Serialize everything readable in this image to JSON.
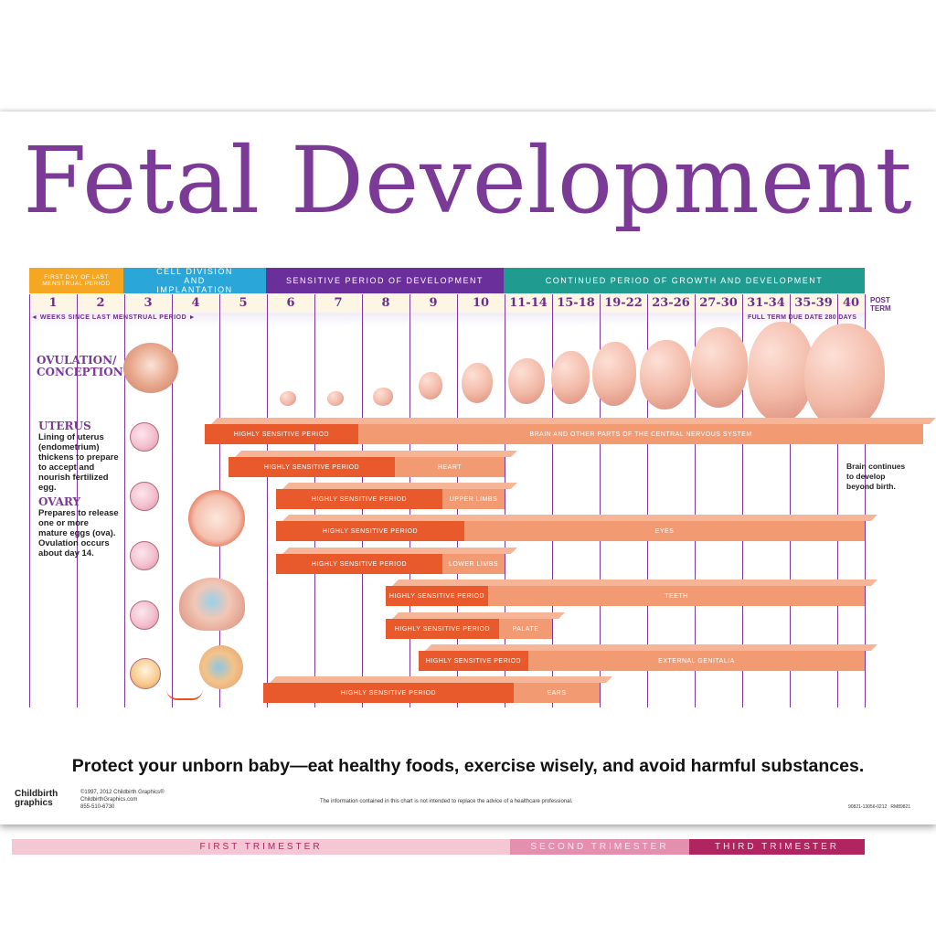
{
  "title": "Fetal Development",
  "header_bands": [
    {
      "text": "FIRST DAY OF LAST MENSTRUAL PERIOD",
      "color": "#f5a623"
    },
    {
      "text": "CELL DIVISION AND IMPLANTATION",
      "color": "#2aa7d8"
    },
    {
      "text": "SENSITIVE PERIOD OF DEVELOPMENT",
      "color": "#6a2f9b"
    },
    {
      "text": "CONTINUED PERIOD OF GROWTH AND DEVELOPMENT",
      "color": "#1f9b8f"
    }
  ],
  "weeks": [
    "1",
    "2",
    "3",
    "4",
    "5",
    "6",
    "7",
    "8",
    "9",
    "10",
    "11-14",
    "15-18",
    "19-22",
    "23-26",
    "27-30",
    "31-34",
    "35-39",
    "40"
  ],
  "post_term": "POST TERM",
  "weeks_note": "WEEKS SINCE LAST MENSTRUAL PERIOD",
  "full_term_note": "FULL TERM DUE DATE 280 DAYS",
  "side": {
    "ovulation": "OVULATION/ CONCEPTION",
    "uterus_head": "UTERUS",
    "uterus_text": "Lining of uterus (endometrium) thickens to prepare to accept and nourish fertilized egg.",
    "ovary_head": "OVARY",
    "ovary_text": "Prepares to release one or more mature eggs (ova). Ovulation occurs about day 14."
  },
  "brain_note": "Brain continues to develop beyond birth.",
  "bars": [
    {
      "sensitive": "HIGHLY SENSITIVE PERIOD",
      "organ": "BRAIN AND OTHER PARTS OF THE CENTRAL NERVOUS SYSTEM"
    },
    {
      "sensitive": "HIGHLY SENSITIVE PERIOD",
      "organ": "HEART"
    },
    {
      "sensitive": "HIGHLY SENSITIVE PERIOD",
      "organ": "UPPER LIMBS"
    },
    {
      "sensitive": "HIGHLY SENSITIVE PERIOD",
      "organ": "EYES"
    },
    {
      "sensitive": "HIGHLY SENSITIVE PERIOD",
      "organ": "LOWER LIMBS"
    },
    {
      "sensitive": "HIGHLY SENSITIVE PERIOD",
      "organ": "TEETH"
    },
    {
      "sensitive": "HIGHLY SENSITIVE PERIOD",
      "organ": "PALATE"
    },
    {
      "sensitive": "HIGHLY SENSITIVE PERIOD",
      "organ": "EXTERNAL GENITALIA"
    },
    {
      "sensitive": "HIGHLY SENSITIVE PERIOD",
      "organ": "EARS"
    }
  ],
  "trimesters": [
    "FIRST TRIMESTER",
    "SECOND TRIMESTER",
    "THIRD TRIMESTER"
  ],
  "tagline": "Protect your unborn baby—eat healthy foods, exercise wisely, and avoid harmful substances.",
  "footer": {
    "logo": "Childbirth graphics",
    "copyright": "©1997, 2012 Childbirth Graphics®",
    "site": "ChildbirthGraphics.com",
    "phone": "855-510-6730",
    "disclaimer": "The information contained in this chart is not intended to replace the advice of a healthcare professional.",
    "code": "90821-13056-0212   RM89821"
  },
  "colors": {
    "title": "#7b3a96",
    "sensitive": "#e85a2b",
    "organ": "#f29a72",
    "first_trimester": "#f3c7d3",
    "second_trimester": "#e58fae",
    "third_trimester": "#b0245f"
  }
}
